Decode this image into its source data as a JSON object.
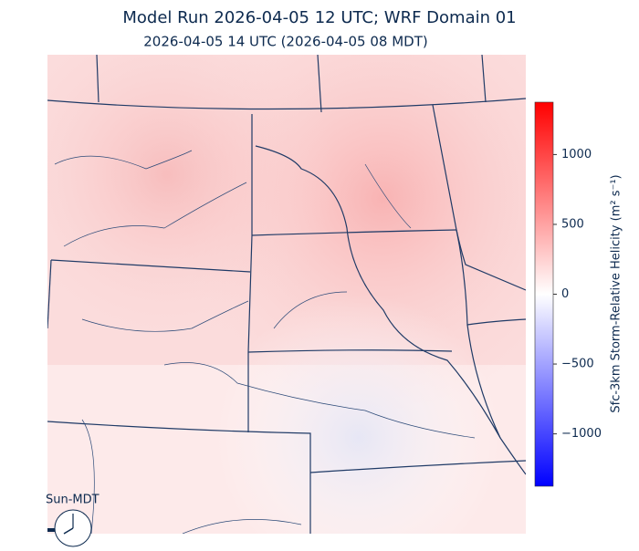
{
  "title": "Model Run 2026-04-05 12 UTC; WRF Domain 01",
  "subtitle": "2026-04-05 14 UTC  (2026-04-05 08 MDT)",
  "colorbar": {
    "label": "Sfc-3km Storm-Relative Helicity (m² s⁻¹)",
    "lim": [
      -1375,
      1375
    ],
    "ticks": [
      {
        "value": -1000,
        "label": "−1000"
      },
      {
        "value": -500,
        "label": "−500"
      },
      0,
      500,
      1000
    ]
  },
  "clock_label": "Sun-MDT"
}
